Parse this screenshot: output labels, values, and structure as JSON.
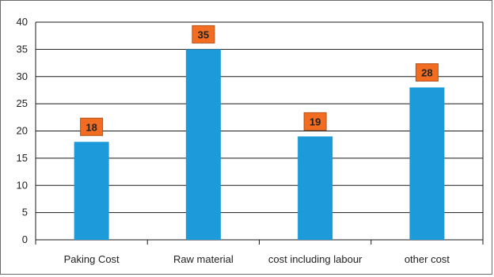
{
  "chart_data": {
    "type": "bar",
    "title": "",
    "xlabel": "",
    "ylabel": "",
    "categories": [
      "Paking Cost",
      "Raw material",
      "cost including labour",
      "other cost"
    ],
    "values": [
      18,
      35,
      19,
      28
    ],
    "value_labels": [
      "18",
      "35",
      "19",
      "28"
    ],
    "ylim": [
      0,
      40
    ],
    "yticks": [
      "0",
      "5",
      "10",
      "15",
      "20",
      "25",
      "30",
      "35",
      "40"
    ],
    "grid": true,
    "legend": "none",
    "colors": {
      "bar": "#1c9ad9",
      "label_box": "#f26d21",
      "label_border": "#b5521a",
      "grid": "#1a1a1a"
    }
  }
}
